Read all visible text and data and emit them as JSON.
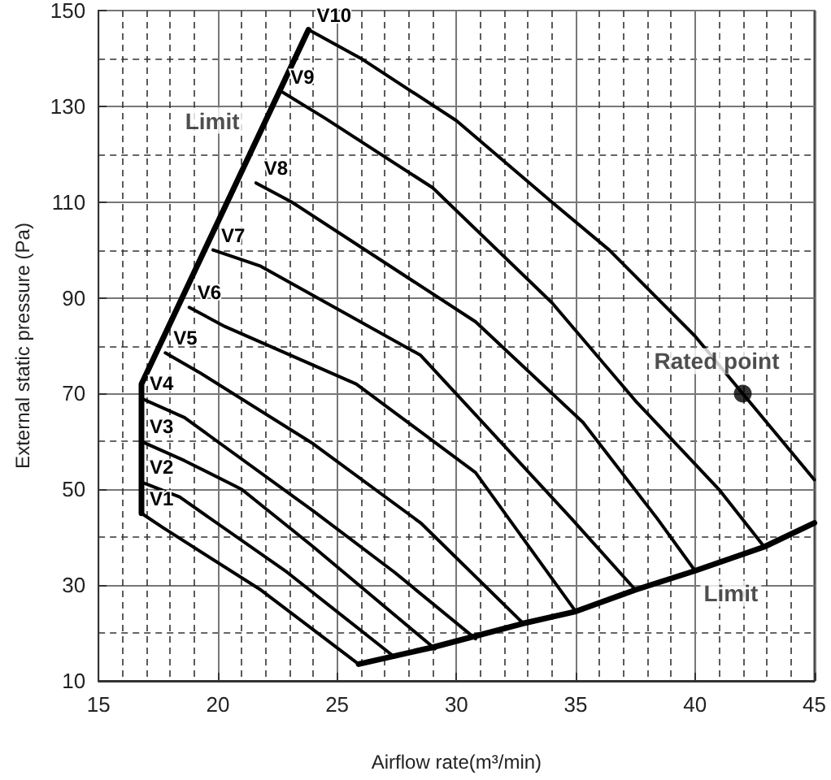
{
  "chart_data": {
    "type": "line",
    "xlabel": "Airflow rate(m³/min)",
    "ylabel": "External static pressure (Pa)",
    "xlim": [
      15,
      45
    ],
    "ylim": [
      10,
      150
    ],
    "xticks": [
      15,
      20,
      25,
      30,
      35,
      40,
      45
    ],
    "yticks": [
      10,
      30,
      50,
      70,
      90,
      110,
      130,
      150
    ],
    "grid": true,
    "legend": false,
    "marker": "none",
    "line_style": "solid",
    "series": [
      {
        "name": "V1",
        "color": "#000000",
        "x": [
          16.8,
          17.7,
          21.8,
          25.9
        ],
        "values": [
          45,
          42,
          29,
          13.5
        ]
      },
      {
        "name": "V2",
        "color": "#000000",
        "x": [
          16.8,
          18.4,
          22.9,
          27.4
        ],
        "values": [
          51.5,
          48.4,
          32.7,
          15
        ]
      },
      {
        "name": "V3",
        "color": "#000000",
        "x": [
          16.8,
          18.6,
          21,
          24,
          29.1
        ],
        "values": [
          60,
          56,
          50,
          38,
          16.7
        ]
      },
      {
        "name": "V4",
        "color": "#000000",
        "x": [
          16.8,
          18.6,
          24,
          27.4,
          30.8
        ],
        "values": [
          69,
          65,
          45.5,
          32.7,
          18.8
        ]
      },
      {
        "name": "V5",
        "color": "#000000",
        "x": [
          17.8,
          19.2,
          24,
          28.5,
          32.8
        ],
        "values": [
          78.5,
          74.5,
          59.5,
          43,
          22
        ]
      },
      {
        "name": "V6",
        "color": "#000000",
        "x": [
          18.8,
          20.3,
          25.8,
          30.8,
          35
        ],
        "values": [
          88,
          84,
          72,
          53.5,
          24.5
        ]
      },
      {
        "name": "V7",
        "color": "#000000",
        "x": [
          19.8,
          21.8,
          28.5,
          34.8,
          37.5
        ],
        "values": [
          100,
          96.6,
          78,
          44,
          29
        ]
      },
      {
        "name": "V8",
        "color": "#000000",
        "x": [
          21.6,
          23.1,
          30.8,
          35.3,
          38.4,
          40
        ],
        "values": [
          114,
          110,
          85,
          64,
          44,
          33
        ]
      },
      {
        "name": "V9",
        "color": "#000000",
        "x": [
          22.7,
          24.5,
          29,
          34,
          37.5,
          41,
          42.9
        ],
        "values": [
          133,
          127.5,
          113,
          89,
          68.5,
          50,
          38
        ]
      },
      {
        "name": "V10",
        "color": "#000000",
        "x": [
          23.8,
          26,
          30,
          34,
          36.4,
          40,
          42,
          45
        ],
        "values": [
          146,
          140,
          127,
          110,
          100,
          82,
          70,
          52
        ]
      },
      {
        "color": "#000000",
        "x": [
          16.8,
          16.8,
          23.8
        ],
        "values": [
          45,
          72,
          146
        ]
      },
      {
        "color": "#000000",
        "x": [
          25.9,
          29,
          32.8,
          35,
          37.5,
          40,
          42.9,
          45
        ],
        "values": [
          13.5,
          17,
          22,
          24.5,
          29,
          33,
          38,
          43
        ]
      },
      {
        "type": "scatter",
        "marker": "circle",
        "color": "#000000",
        "x": [
          42
        ],
        "values": [
          70
        ]
      }
    ],
    "annotations": [
      {
        "text": "Limit",
        "x": 22,
        "y": 127
      },
      {
        "text": "Limit",
        "x": 41.5,
        "y": 36.4
      },
      {
        "text": "Rated point",
        "x": 42,
        "y": 70
      }
    ]
  }
}
